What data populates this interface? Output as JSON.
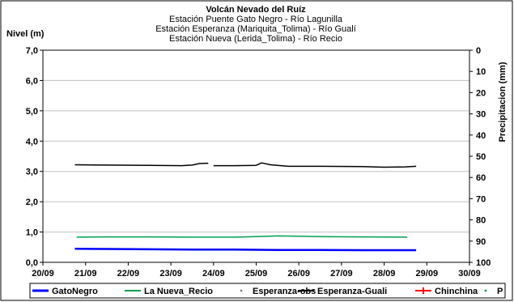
{
  "chart_data": {
    "type": "line",
    "title": "Volcán Nevado del Ruíz",
    "subtitle_lines": [
      "Estación Puente Gato Negro - Río Lagunilla",
      "Estación Esperanza (Mariquita_Tolima) - Río Gualí",
      "Estación Nueva (Lerida_Tolima) - Río Recio"
    ],
    "ylabel": "Nivel (m)",
    "y2label": "Precipitacion (mm)",
    "xlabel": "",
    "x_ticks": [
      "20/09",
      "21/09",
      "22/09",
      "23/09",
      "24/09",
      "25/09",
      "26/09",
      "27/09",
      "28/09",
      "29/09",
      "30/09"
    ],
    "xlim": [
      "20/09",
      "30/09"
    ],
    "y_ticks": [
      "0,0",
      "1,0",
      "2,0",
      "3,0",
      "4,0",
      "5,0",
      "6,0",
      "7,0"
    ],
    "ylim": [
      0,
      7
    ],
    "y2_ticks": [
      "0",
      "10",
      "20",
      "30",
      "40",
      "50",
      "60",
      "70",
      "80",
      "90",
      "100"
    ],
    "y2lim": [
      0,
      100
    ],
    "y2_inverted": true,
    "grid": "horizontal",
    "legend_position": "bottom",
    "series": [
      {
        "name": "GatoNegro",
        "color": "#0000ff",
        "style": "thick-line",
        "points": [
          [
            "20/09 18:00",
            0.45
          ],
          [
            "21/09 12:00",
            0.44
          ],
          [
            "22/09 12:00",
            0.43
          ],
          [
            "23/09 12:00",
            0.42
          ],
          [
            "24/09 12:00",
            0.42
          ],
          [
            "25/09 12:00",
            0.41
          ],
          [
            "26/09 12:00",
            0.41
          ],
          [
            "27/09 12:00",
            0.4
          ],
          [
            "28/09 12:00",
            0.4
          ],
          [
            "28/09 18:00",
            0.4
          ]
        ]
      },
      {
        "name": "La Nueva_Recio",
        "color": "#00a050",
        "style": "line",
        "points": [
          [
            "20/09 19:00",
            0.83
          ],
          [
            "21/09 12:00",
            0.84
          ],
          [
            "22/09 12:00",
            0.84
          ],
          [
            "23/09 12:00",
            0.83
          ],
          [
            "24/09 12:00",
            0.83
          ],
          [
            "25/09 00:00",
            0.85
          ],
          [
            "25/09 12:00",
            0.87
          ],
          [
            "26/09 00:00",
            0.86
          ],
          [
            "26/09 12:00",
            0.85
          ],
          [
            "27/09 12:00",
            0.84
          ],
          [
            "28/09 12:00",
            0.83
          ],
          [
            "28/09 13:00",
            0.82
          ]
        ]
      },
      {
        "name": "Esperanza-obs",
        "color": "#808080",
        "style": "dots",
        "points": [
          [
            "20/09 23:00",
            0.0
          ],
          [
            "21/09 23:00",
            0.0
          ],
          [
            "22/09 23:00",
            0.0
          ],
          [
            "23/09 23:00",
            0.0
          ],
          [
            "24/09 23:00",
            0.0
          ],
          [
            "25/09 23:00",
            0.0
          ],
          [
            "26/09 23:00",
            0.0
          ],
          [
            "27/09 23:00",
            0.0
          ],
          [
            "28/09 23:00",
            0.0
          ]
        ]
      },
      {
        "name": "Esperanza-Guali",
        "color": "#000000",
        "style": "line",
        "segments": [
          [
            [
              "20/09 18:00",
              3.22
            ],
            [
              "21/09 12:00",
              3.21
            ],
            [
              "22/09 12:00",
              3.2
            ],
            [
              "23/09 06:00",
              3.19
            ],
            [
              "23/09 12:00",
              3.21
            ],
            [
              "23/09 16:00",
              3.26
            ],
            [
              "23/09 21:00",
              3.27
            ]
          ],
          [
            [
              "24/09 00:00",
              3.19
            ],
            [
              "24/09 12:00",
              3.19
            ],
            [
              "25/09 00:00",
              3.2
            ],
            [
              "25/09 03:00",
              3.28
            ],
            [
              "25/09 08:00",
              3.22
            ],
            [
              "25/09 18:00",
              3.17
            ],
            [
              "26/09 12:00",
              3.17
            ],
            [
              "27/09 12:00",
              3.16
            ],
            [
              "28/09 00:00",
              3.14
            ],
            [
              "28/09 12:00",
              3.15
            ],
            [
              "28/09 18:00",
              3.17
            ]
          ]
        ]
      },
      {
        "name": "Chinchina",
        "color": "#ff0000",
        "style": "line-marker",
        "points": []
      },
      {
        "name": "P",
        "color": "#00a050",
        "style": "dot",
        "points": []
      }
    ]
  }
}
